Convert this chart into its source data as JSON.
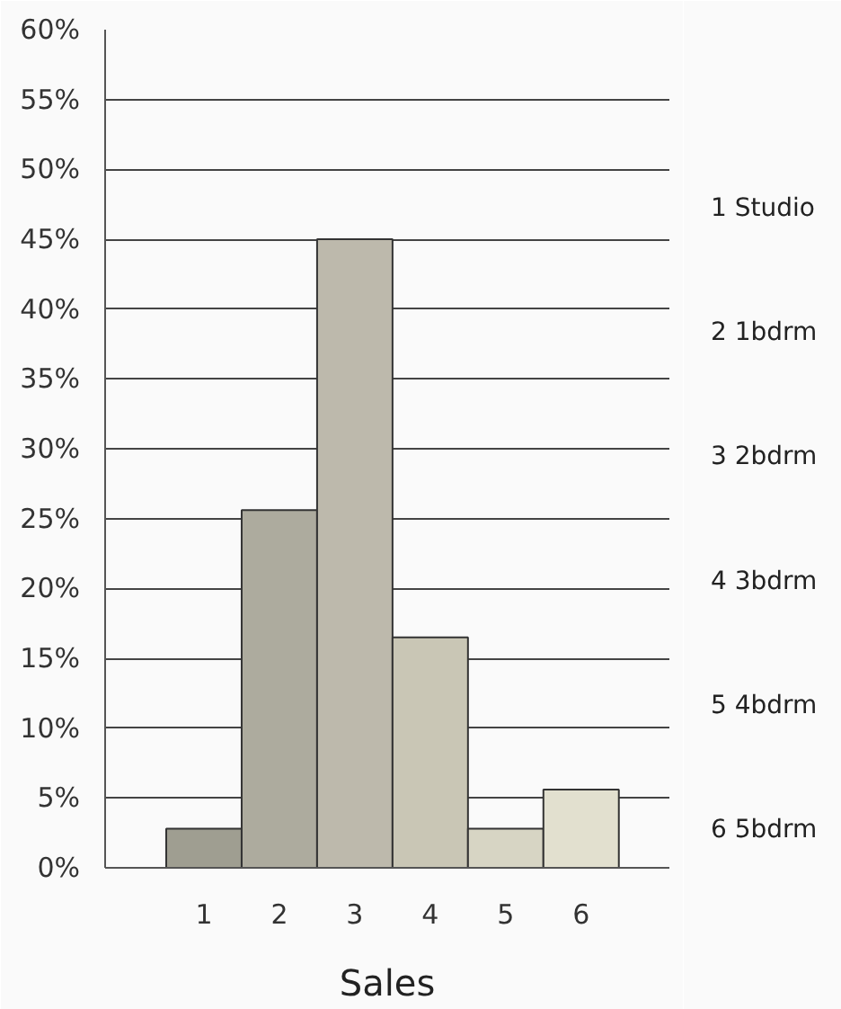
{
  "chart_data": {
    "type": "bar",
    "xlabel": "Sales",
    "categories": [
      "1",
      "2",
      "3",
      "4",
      "5",
      "6"
    ],
    "values": [
      2.8,
      25.6,
      45,
      16.5,
      2.8,
      5.6
    ],
    "colors": [
      "#9f9e91",
      "#adab9e",
      "#bdb9ac",
      "#c9c6b5",
      "#d7d5c4",
      "#e2e0cf"
    ],
    "ylim": [
      0,
      60
    ],
    "yticks": [
      {
        "value": 0,
        "label": "0%"
      },
      {
        "value": 5,
        "label": "5%"
      },
      {
        "value": 10,
        "label": "10%"
      },
      {
        "value": 15,
        "label": "15%"
      },
      {
        "value": 20,
        "label": "20%"
      },
      {
        "value": 25,
        "label": "25%"
      },
      {
        "value": 30,
        "label": "30%"
      },
      {
        "value": 35,
        "label": "35%"
      },
      {
        "value": 40,
        "label": "40%"
      },
      {
        "value": 45,
        "label": "45%"
      },
      {
        "value": 50,
        "label": "50%"
      },
      {
        "value": 55,
        "label": "55%"
      },
      {
        "value": 60,
        "label": "60%"
      }
    ],
    "grid": "y",
    "annotations": [
      "1 Studio",
      "2 1bdrm",
      "3 2bdrm",
      "4 3bdrm",
      "5 4bdrm",
      "6 5bdrm"
    ]
  }
}
